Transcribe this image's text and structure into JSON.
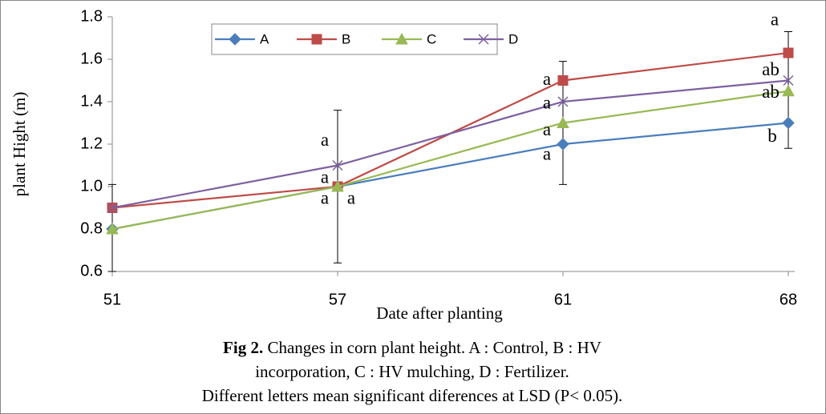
{
  "chart_data": {
    "type": "line",
    "x_label": "Date after planting",
    "y_label": "plant Hight (m)",
    "categories": [
      "51",
      "57",
      "61",
      "68"
    ],
    "ylim": [
      0.6,
      1.8
    ],
    "yticks": [
      {
        "value": 0.6,
        "label": "0.6"
      },
      {
        "value": 0.8,
        "label": "0.8"
      },
      {
        "value": 1.0,
        "label": "1.0"
      },
      {
        "value": 1.2,
        "label": "1.2"
      },
      {
        "value": 1.4,
        "label": "1.4"
      },
      {
        "value": 1.6,
        "label": "1.6"
      },
      {
        "value": 1.8,
        "label": "1.8"
      }
    ],
    "series": [
      {
        "name": "A",
        "color": "#4a7ebb",
        "marker": "diamond",
        "values": [
          0.8,
          1.0,
          1.2,
          1.3
        ]
      },
      {
        "name": "B",
        "color": "#be4b48",
        "marker": "square",
        "values": [
          0.9,
          1.0,
          1.5,
          1.63
        ]
      },
      {
        "name": "C",
        "color": "#98b954",
        "marker": "triangle",
        "values": [
          0.8,
          1.0,
          1.3,
          1.45
        ]
      },
      {
        "name": "D",
        "color": "#7d60a0",
        "marker": "x",
        "values": [
          0.9,
          1.1,
          1.4,
          1.5
        ]
      }
    ],
    "error_bars": [
      {
        "low": 0.6,
        "high": 1.01
      },
      {
        "low": 0.64,
        "high": 1.36
      },
      {
        "low": 1.01,
        "high": 1.59
      },
      {
        "low": 1.18,
        "high": 1.73
      }
    ],
    "annotations": [
      {
        "text": "a",
        "series": 3,
        "index": 1
      },
      {
        "text": "a",
        "series": 1,
        "index": 1
      },
      {
        "text": "a",
        "series": 0,
        "index": 1
      },
      {
        "text": "a",
        "series": 2,
        "index": 1
      },
      {
        "text": "a",
        "series": 1,
        "index": 2
      },
      {
        "text": "a",
        "series": 3,
        "index": 2
      },
      {
        "text": "a",
        "series": 2,
        "index": 2
      },
      {
        "text": "a",
        "series": 0,
        "index": 2
      },
      {
        "text": "a",
        "series": 1,
        "index": 3
      },
      {
        "text": "ab",
        "series": 3,
        "index": 3
      },
      {
        "text": "ab",
        "series": 2,
        "index": 3
      },
      {
        "text": "b",
        "series": 0,
        "index": 3
      }
    ],
    "caption": {
      "label": "Fig 2.",
      "lines": [
        " Changes in corn plant height. A : Control, B : HV",
        "incorporation, C : HV mulching, D : Fertilizer.",
        "Different letters mean significant diferences at LSD (P< 0.05)."
      ]
    }
  }
}
